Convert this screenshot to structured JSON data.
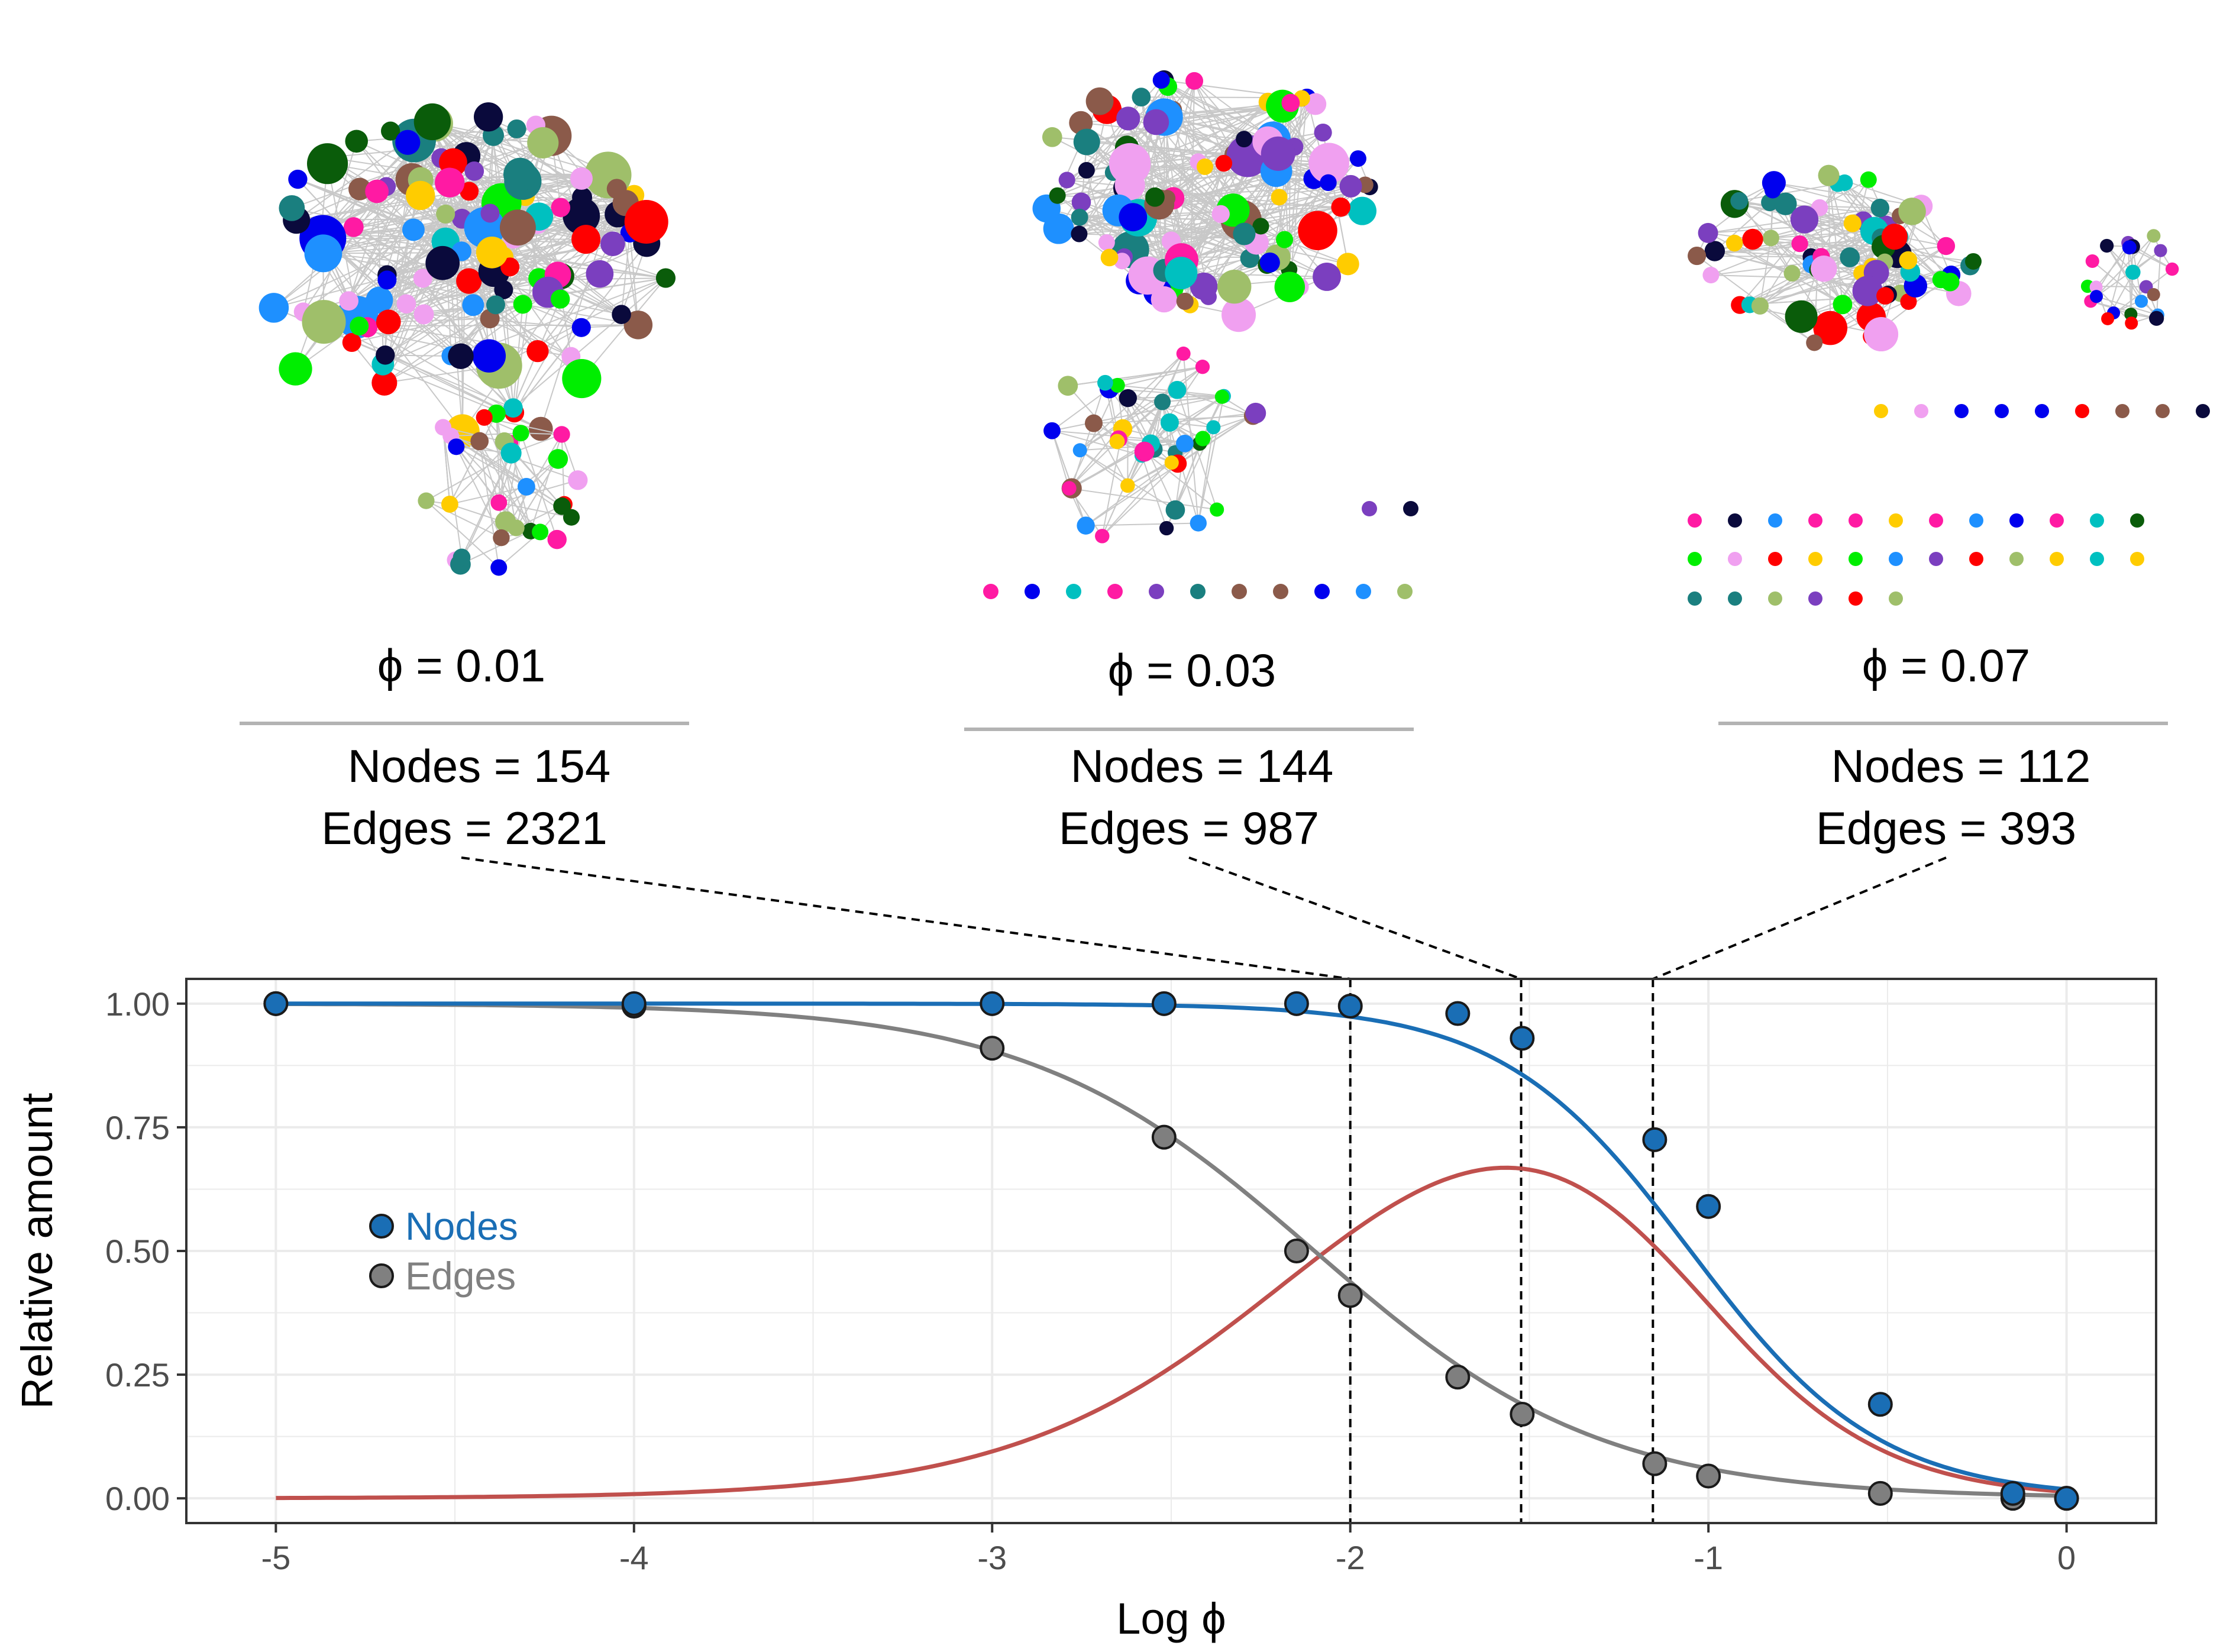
{
  "networks": [
    {
      "phi_label": "ϕ = 0.01",
      "nodes_label": "Nodes = 154",
      "edges_label": "Edges = 2321",
      "phi": 0.01,
      "nodes": 154,
      "edges": 2321
    },
    {
      "phi_label": "ϕ = 0.03",
      "nodes_label": "Nodes = 144",
      "edges_label": "Edges = 987",
      "phi": 0.03,
      "nodes": 144,
      "edges": 987
    },
    {
      "phi_label": "ϕ = 0.07",
      "nodes_label": "Nodes = 112",
      "edges_label": "Edges = 393",
      "phi": 0.07,
      "nodes": 112,
      "edges": 393
    }
  ],
  "node_palette": [
    "#00ee00",
    "#0000ee",
    "#0a5c0a",
    "#ff0000",
    "#ffcc00",
    "#ff1aa3",
    "#00c0c0",
    "#1e90ff",
    "#0a0a3c",
    "#8b5a4a",
    "#7b3fbf",
    "#1a7f7f",
    "#f0a0f0",
    "#9fbf6a"
  ],
  "chart_data": {
    "type": "line",
    "title": "",
    "xlabel": "Log ϕ",
    "ylabel": "Relative amount",
    "xlim": [
      -5.25,
      0.25
    ],
    "ylim": [
      -0.05,
      1.05
    ],
    "x_ticks": [
      -5,
      -4,
      -3,
      -2,
      -1,
      0
    ],
    "x_tick_labels": [
      "-5",
      "-4",
      "-3",
      "-2",
      "-1",
      "0"
    ],
    "y_ticks": [
      0,
      0.25,
      0.5,
      0.75,
      1.0
    ],
    "y_tick_labels": [
      "0.00",
      "0.25",
      "0.50",
      "0.75",
      "1.00"
    ],
    "grid": true,
    "legend_position": "left",
    "series": [
      {
        "name": "Nodes",
        "color": "#1a6eb5",
        "x": [
          -5,
          -4,
          -3,
          -2.52,
          -2.15,
          -2,
          -1.7,
          -1.52,
          -1.15,
          -1,
          -0.52,
          -0.15,
          0
        ],
        "y": [
          1.0,
          1.0,
          1.0,
          1.0,
          1.0,
          0.995,
          0.98,
          0.93,
          0.725,
          0.59,
          0.19,
          0.01,
          0.0
        ]
      },
      {
        "name": "Edges",
        "color": "#7f7f7f",
        "x": [
          -5,
          -4,
          -3,
          -2.52,
          -2.15,
          -2,
          -1.7,
          -1.52,
          -1.15,
          -1,
          -0.52,
          -0.15,
          0
        ],
        "y": [
          1.0,
          0.995,
          0.91,
          0.73,
          0.5,
          0.41,
          0.245,
          0.17,
          0.07,
          0.045,
          0.01,
          0.0,
          0.0
        ]
      }
    ],
    "fitted_curves": [
      {
        "name": "Nodes fit",
        "color": "#1a6eb5",
        "model": "logistic",
        "x0": -1.05,
        "k": 3.8,
        "top": 1.0
      },
      {
        "name": "Edges fit",
        "color": "#808080",
        "model": "logistic",
        "x0": -2.1,
        "k": 2.5,
        "top": 1.0
      },
      {
        "name": "Difference",
        "color": "#c0504d",
        "model": "nodes_minus_edges"
      }
    ],
    "reference_lines_x": [
      -2.0,
      -1.523,
      -1.155
    ]
  }
}
